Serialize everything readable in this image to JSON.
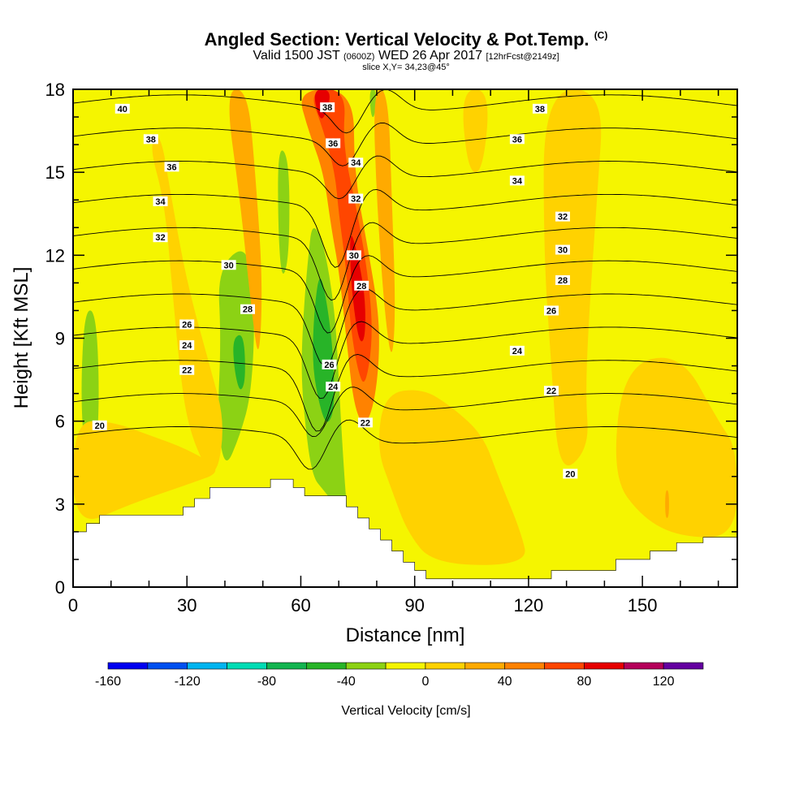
{
  "header": {
    "title": "Angled Section: Vertical Velocity & Pot.Temp.",
    "title_unit": "(C)",
    "valid_prefix": "Valid 1500 JST",
    "valid_utc": "(0600Z)",
    "valid_date": "WED 26 Apr 2017",
    "forecast_info": "[12hrFcst@2149z]",
    "slice": "slice X,Y= 34,23@45°"
  },
  "chart_data": {
    "type": "heatmap",
    "xlabel": "Distance [nm]",
    "ylabel": "Height [Kft MSL]",
    "xlim": [
      0,
      175
    ],
    "ylim": [
      0,
      18
    ],
    "x_ticks": [
      0,
      30,
      60,
      90,
      120,
      150
    ],
    "y_ticks": [
      0,
      3,
      6,
      9,
      12,
      15,
      18
    ],
    "background_fill": "#f5f500",
    "colorbar": {
      "label": "Vertical Velocity [cm/s]",
      "tick_labels": [
        "-160",
        "-120",
        "-80",
        "-40",
        "0",
        "40",
        "80",
        "120"
      ],
      "tick_values": [
        -160,
        -120,
        -80,
        -40,
        0,
        40,
        80,
        120
      ],
      "range": [
        -160,
        140
      ],
      "step": 20,
      "colors": [
        "#0000f0",
        "#0050f0",
        "#00b4f0",
        "#00dcb4",
        "#14b450",
        "#28b428",
        "#8cd214",
        "#f5f500",
        "#ffd200",
        "#ffaa00",
        "#ff8200",
        "#ff4600",
        "#e60000",
        "#b4005a",
        "#6400a0"
      ]
    },
    "velocity_regions": [
      {
        "level": -40,
        "color": "#8cd214",
        "points": [
          [
            3,
            10
          ],
          [
            6,
            10
          ],
          [
            7,
            7
          ],
          [
            6,
            4.5
          ],
          [
            3,
            4.8
          ],
          [
            2,
            7
          ]
        ]
      },
      {
        "level": -40,
        "color": "#8cd214",
        "points": [
          [
            38,
            11.5
          ],
          [
            46,
            12.5
          ],
          [
            48,
            10
          ],
          [
            47,
            7
          ],
          [
            44,
            5.5
          ],
          [
            40,
            4.2
          ],
          [
            38,
            6
          ],
          [
            39,
            9
          ]
        ]
      },
      {
        "level": -60,
        "color": "#28b428",
        "points": [
          [
            42,
            9
          ],
          [
            45,
            9.2
          ],
          [
            45.5,
            7.5
          ],
          [
            44,
            7
          ],
          [
            42.5,
            7.8
          ]
        ]
      },
      {
        "level": -40,
        "color": "#8cd214",
        "points": [
          [
            63,
            13.2
          ],
          [
            66,
            12.5
          ],
          [
            69,
            10
          ],
          [
            70,
            7.5
          ],
          [
            71,
            5
          ],
          [
            72,
            3
          ],
          [
            73,
            2
          ],
          [
            70,
            2.8
          ],
          [
            66,
            3.5
          ],
          [
            63,
            4
          ],
          [
            61,
            6
          ],
          [
            60,
            8
          ],
          [
            61,
            10.5
          ],
          [
            62,
            12
          ]
        ]
      },
      {
        "level": -60,
        "color": "#28b428",
        "points": [
          [
            65,
            11.5
          ],
          [
            67,
            10.2
          ],
          [
            68.5,
            8.5
          ],
          [
            69,
            6.5
          ],
          [
            67,
            5.8
          ],
          [
            65,
            6.5
          ],
          [
            63,
            8
          ],
          [
            63.5,
            10
          ]
        ]
      },
      {
        "level": -40,
        "color": "#8cd214",
        "points": [
          [
            42,
            18
          ],
          [
            44,
            18
          ],
          [
            43.5,
            16.5
          ],
          [
            42.5,
            16.5
          ]
        ]
      },
      {
        "level": -40,
        "color": "#8cd214",
        "points": [
          [
            54,
            16
          ],
          [
            57,
            15.5
          ],
          [
            57,
            12
          ],
          [
            55,
            11
          ],
          [
            54,
            13
          ]
        ]
      },
      {
        "level": -40,
        "color": "#8cd214",
        "points": [
          [
            78,
            18
          ],
          [
            80,
            18
          ],
          [
            79.5,
            17
          ],
          [
            78.5,
            17
          ]
        ]
      },
      {
        "level": -40,
        "color": "#8cd214",
        "points": [
          [
            133.5,
            11
          ],
          [
            134.5,
            10.5
          ],
          [
            134,
            8.5
          ],
          [
            133.2,
            8.5
          ]
        ]
      },
      {
        "level": 20,
        "color": "#ffd200",
        "points": [
          [
            20,
            16
          ],
          [
            24,
            14
          ],
          [
            26,
            11
          ],
          [
            28,
            8
          ],
          [
            30,
            6
          ],
          [
            34,
            4.5
          ],
          [
            38,
            4
          ],
          [
            40,
            6
          ],
          [
            36,
            8
          ],
          [
            30,
            11
          ],
          [
            26,
            14
          ],
          [
            23,
            16.5
          ]
        ]
      },
      {
        "level": 20,
        "color": "#ffd200",
        "points": [
          [
            82,
            7
          ],
          [
            92,
            7.2
          ],
          [
            100,
            6.5
          ],
          [
            108,
            5.5
          ],
          [
            112,
            4
          ],
          [
            118,
            2
          ],
          [
            120,
            0.8
          ],
          [
            95,
            0.8
          ],
          [
            88,
            2
          ],
          [
            84,
            3.5
          ],
          [
            80,
            5
          ]
        ]
      },
      {
        "level": 20,
        "color": "#ffd200",
        "points": [
          [
            124,
            18
          ],
          [
            140,
            18
          ],
          [
            138,
            14
          ],
          [
            136,
            10
          ],
          [
            135,
            7
          ],
          [
            136,
            5
          ],
          [
            128,
            4
          ],
          [
            126,
            8
          ],
          [
            124,
            12
          ]
        ]
      },
      {
        "level": 20,
        "color": "#ffd200",
        "points": [
          [
            0,
            6
          ],
          [
            10,
            6
          ],
          [
            20,
            5.5
          ],
          [
            30,
            5
          ],
          [
            40,
            4.2
          ],
          [
            30,
            3.7
          ],
          [
            15,
            3
          ],
          [
            0,
            2.1
          ]
        ]
      },
      {
        "level": 20,
        "color": "#ffd200",
        "points": [
          [
            145,
            8
          ],
          [
            160,
            8.5
          ],
          [
            170,
            6
          ],
          [
            175,
            5
          ],
          [
            175,
            1.8
          ],
          [
            160,
            1.8
          ],
          [
            150,
            2.5
          ],
          [
            142,
            4
          ]
        ]
      },
      {
        "level": 20,
        "color": "#ffd200",
        "points": [
          [
            102,
            18
          ],
          [
            110,
            18
          ],
          [
            108,
            15
          ],
          [
            104,
            15
          ]
        ]
      },
      {
        "level": 40,
        "color": "#ffaa00",
        "points": [
          [
            40,
            18
          ],
          [
            46,
            18
          ],
          [
            48,
            15
          ],
          [
            50,
            11
          ],
          [
            49,
            8
          ],
          [
            47,
            10
          ],
          [
            44,
            14
          ]
        ]
      },
      {
        "level": 40,
        "color": "#ffaa00",
        "points": [
          [
            79,
            18
          ],
          [
            83,
            18
          ],
          [
            84,
            14
          ],
          [
            85,
            10
          ],
          [
            84,
            8
          ],
          [
            82,
            10
          ],
          [
            80,
            14
          ]
        ]
      },
      {
        "level": 40,
        "color": "#ffaa00",
        "points": [
          [
            156,
            3.5
          ],
          [
            157,
            3.5
          ],
          [
            157,
            2.5
          ],
          [
            156,
            2.5
          ]
        ]
      },
      {
        "level": 60,
        "color": "#ff8200",
        "points": [
          [
            59,
            18
          ],
          [
            74,
            18
          ],
          [
            74,
            15
          ],
          [
            78,
            12
          ],
          [
            81,
            9.5
          ],
          [
            80,
            7
          ],
          [
            77,
            5.7
          ],
          [
            74,
            6.5
          ],
          [
            72,
            9
          ],
          [
            70,
            11.5
          ],
          [
            68,
            13
          ],
          [
            66,
            15
          ],
          [
            62,
            16.5
          ]
        ]
      },
      {
        "level": 80,
        "color": "#ff4600",
        "points": [
          [
            62,
            18
          ],
          [
            72,
            18
          ],
          [
            71,
            16
          ],
          [
            75,
            13.5
          ],
          [
            78,
            11
          ],
          [
            79,
            9
          ],
          [
            77,
            7.2
          ],
          [
            75,
            7.8
          ],
          [
            73,
            9.5
          ],
          [
            72,
            11.5
          ],
          [
            70,
            13.5
          ],
          [
            69,
            15
          ],
          [
            66,
            16.5
          ]
        ]
      },
      {
        "level": 100,
        "color": "#e60000",
        "points": [
          [
            63,
            18
          ],
          [
            68,
            18
          ],
          [
            67,
            17.2
          ],
          [
            65,
            16.8
          ]
        ]
      },
      {
        "level": 100,
        "color": "#e60000",
        "points": [
          [
            73,
            13
          ],
          [
            75,
            12
          ],
          [
            77,
            10.5
          ],
          [
            77,
            9
          ],
          [
            75.5,
            8.8
          ],
          [
            74,
            10
          ],
          [
            73,
            11.5
          ]
        ]
      }
    ],
    "isentrope_levels": [
      20,
      22,
      24,
      26,
      28,
      30,
      32,
      34,
      36,
      38,
      40
    ],
    "isentrope_labels": [
      {
        "text": "40",
        "x": 13,
        "y": 17.3
      },
      {
        "text": "38",
        "x": 20.5,
        "y": 16.2
      },
      {
        "text": "36",
        "x": 26,
        "y": 15.2
      },
      {
        "text": "34",
        "x": 23,
        "y": 13.95
      },
      {
        "text": "32",
        "x": 23,
        "y": 12.65
      },
      {
        "text": "30",
        "x": 41,
        "y": 11.65
      },
      {
        "text": "28",
        "x": 46,
        "y": 10.05
      },
      {
        "text": "26",
        "x": 30,
        "y": 9.5
      },
      {
        "text": "24",
        "x": 30,
        "y": 8.75
      },
      {
        "text": "22",
        "x": 30,
        "y": 7.85
      },
      {
        "text": "20",
        "x": 7,
        "y": 5.85
      },
      {
        "text": "38",
        "x": 67,
        "y": 17.35
      },
      {
        "text": "36",
        "x": 68.5,
        "y": 16.05
      },
      {
        "text": "34",
        "x": 74.5,
        "y": 15.35
      },
      {
        "text": "32",
        "x": 74.5,
        "y": 14.05
      },
      {
        "text": "30",
        "x": 74,
        "y": 12.0
      },
      {
        "text": "28",
        "x": 76,
        "y": 10.9
      },
      {
        "text": "26",
        "x": 67.5,
        "y": 8.05
      },
      {
        "text": "24",
        "x": 68.5,
        "y": 7.25
      },
      {
        "text": "22",
        "x": 77,
        "y": 5.95
      },
      {
        "text": "38",
        "x": 123,
        "y": 17.3
      },
      {
        "text": "36",
        "x": 117,
        "y": 16.2
      },
      {
        "text": "34",
        "x": 117,
        "y": 14.7
      },
      {
        "text": "32",
        "x": 129,
        "y": 13.4
      },
      {
        "text": "30",
        "x": 129,
        "y": 12.2
      },
      {
        "text": "28",
        "x": 129,
        "y": 11.1
      },
      {
        "text": "26",
        "x": 126,
        "y": 10.0
      },
      {
        "text": "24",
        "x": 117,
        "y": 8.55
      },
      {
        "text": "22",
        "x": 126,
        "y": 7.1
      },
      {
        "text": "20",
        "x": 131,
        "y": 4.1
      }
    ],
    "terrain": [
      [
        0,
        2
      ],
      [
        3.5,
        2
      ],
      [
        3.5,
        2.3
      ],
      [
        7,
        2.3
      ],
      [
        7,
        2.6
      ],
      [
        29,
        2.6
      ],
      [
        29,
        2.9
      ],
      [
        32,
        2.9
      ],
      [
        32,
        3.2
      ],
      [
        36,
        3.2
      ],
      [
        36,
        3.6
      ],
      [
        52,
        3.6
      ],
      [
        52,
        3.9
      ],
      [
        58,
        3.9
      ],
      [
        58,
        3.6
      ],
      [
        61,
        3.6
      ],
      [
        61,
        3.3
      ],
      [
        72,
        3.3
      ],
      [
        72,
        2.9
      ],
      [
        75,
        2.9
      ],
      [
        75,
        2.5
      ],
      [
        78,
        2.5
      ],
      [
        78,
        2.1
      ],
      [
        81,
        2.1
      ],
      [
        81,
        1.7
      ],
      [
        84,
        1.7
      ],
      [
        84,
        1.3
      ],
      [
        87,
        1.3
      ],
      [
        87,
        0.9
      ],
      [
        90,
        0.9
      ],
      [
        90,
        0.6
      ],
      [
        93,
        0.6
      ],
      [
        93,
        0.3
      ],
      [
        126,
        0.3
      ],
      [
        126,
        0.6
      ],
      [
        143,
        0.6
      ],
      [
        143,
        1.0
      ],
      [
        152,
        1.0
      ],
      [
        152,
        1.3
      ],
      [
        159,
        1.3
      ],
      [
        159,
        1.6
      ],
      [
        166,
        1.6
      ],
      [
        166,
        1.8
      ],
      [
        175,
        1.8
      ],
      [
        175,
        0
      ],
      [
        0,
        0
      ]
    ]
  }
}
